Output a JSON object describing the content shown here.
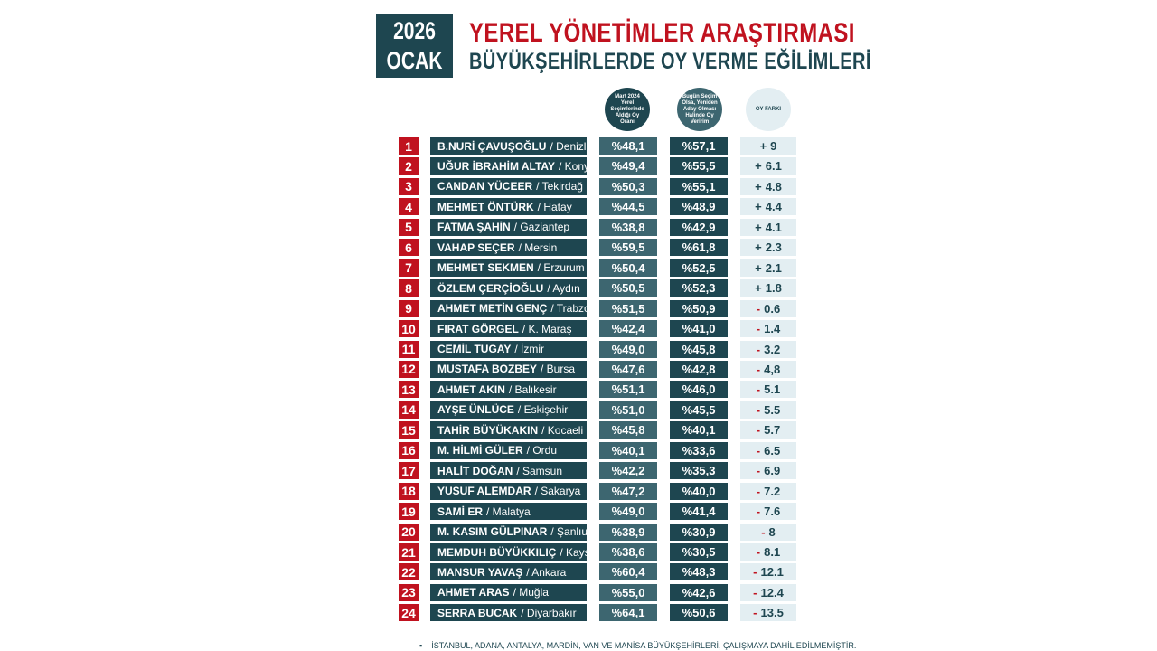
{
  "header": {
    "year": "2026",
    "month": "OCAK",
    "title": "YEREL YÖNETİMLER ARAŞTIRMASI",
    "subtitle": "BÜYÜKŞEHİRLERDE OY VERME EĞİLİMLERİ"
  },
  "columns": {
    "march2024": "Mart 2024 Yerel Seçimlerinde Aldığı Oy Oranı",
    "today": "Bugün Seçim Olsa, Yeniden Aday Olması Halinde Oy Veririm",
    "diff": "OY FARKI"
  },
  "colors": {
    "red": "#c0121f",
    "dark_teal": "#1e4650",
    "mid_teal": "#3d6670",
    "light": "#e3eef2"
  },
  "rows": [
    {
      "rank": "1",
      "name": "B.NURİ ÇAVUŞOĞLU",
      "city": "/ Denizli",
      "v2024": "%48,1",
      "vnow": "%57,1",
      "sign": "+",
      "diff": "9"
    },
    {
      "rank": "2",
      "name": "UĞUR İBRAHİM ALTAY",
      "city": "/ Konya",
      "v2024": "%49,4",
      "vnow": "%55,5",
      "sign": "+",
      "diff": "6.1"
    },
    {
      "rank": "3",
      "name": "CANDAN YÜCEER",
      "city": "/ Tekirdağ",
      "v2024": "%50,3",
      "vnow": "%55,1",
      "sign": "+",
      "diff": "4.8"
    },
    {
      "rank": "4",
      "name": "MEHMET ÖNTÜRK",
      "city": "/ Hatay",
      "v2024": "%44,5",
      "vnow": "%48,9",
      "sign": "+",
      "diff": "4.4"
    },
    {
      "rank": "5",
      "name": "FATMA ŞAHİN",
      "city": "/ Gaziantep",
      "v2024": "%38,8",
      "vnow": "%42,9",
      "sign": "+",
      "diff": "4.1"
    },
    {
      "rank": "6",
      "name": "VAHAP SEÇER",
      "city": "/ Mersin",
      "v2024": "%59,5",
      "vnow": "%61,8",
      "sign": "+",
      "diff": "2.3"
    },
    {
      "rank": "7",
      "name": "MEHMET SEKMEN",
      "city": "/ Erzurum",
      "v2024": "%50,4",
      "vnow": "%52,5",
      "sign": "+",
      "diff": "2.1"
    },
    {
      "rank": "8",
      "name": "ÖZLEM ÇERÇİOĞLU",
      "city": "/ Aydın",
      "v2024": "%50,5",
      "vnow": "%52,3",
      "sign": "+",
      "diff": "1.8"
    },
    {
      "rank": "9",
      "name": "AHMET METİN GENÇ",
      "city": "/ Trabzon",
      "v2024": "%51,5",
      "vnow": "%50,9",
      "sign": "-",
      "diff": "0.6"
    },
    {
      "rank": "10",
      "name": "FIRAT GÖRGEL",
      "city": "/ K. Maraş",
      "v2024": "%42,4",
      "vnow": "%41,0",
      "sign": "-",
      "diff": "1.4"
    },
    {
      "rank": "11",
      "name": "CEMİL TUGAY",
      "city": "/ İzmir",
      "v2024": "%49,0",
      "vnow": "%45,8",
      "sign": "-",
      "diff": "3.2"
    },
    {
      "rank": "12",
      "name": "MUSTAFA BOZBEY",
      "city": "/ Bursa",
      "v2024": "%47,6",
      "vnow": "%42,8",
      "sign": "-",
      "diff": "4,8"
    },
    {
      "rank": "13",
      "name": "AHMET AKIN",
      "city": "/ Balıkesir",
      "v2024": "%51,1",
      "vnow": "%46,0",
      "sign": "-",
      "diff": "5.1"
    },
    {
      "rank": "14",
      "name": "AYŞE ÜNLÜCE",
      "city": "/ Eskişehir",
      "v2024": "%51,0",
      "vnow": "%45,5",
      "sign": "-",
      "diff": "5.5"
    },
    {
      "rank": "15",
      "name": "TAHİR BÜYÜKAKIN",
      "city": "/ Kocaeli",
      "v2024": "%45,8",
      "vnow": "%40,1",
      "sign": "-",
      "diff": "5.7"
    },
    {
      "rank": "16",
      "name": "M. HİLMİ GÜLER",
      "city": "/ Ordu",
      "v2024": "%40,1",
      "vnow": "%33,6",
      "sign": "-",
      "diff": "6.5"
    },
    {
      "rank": "17",
      "name": "HALİT DOĞAN",
      "city": "/ Samsun",
      "v2024": "%42,2",
      "vnow": "%35,3",
      "sign": "-",
      "diff": "6.9"
    },
    {
      "rank": "18",
      "name": "YUSUF ALEMDAR",
      "city": "/ Sakarya",
      "v2024": "%47,2",
      "vnow": "%40,0",
      "sign": "-",
      "diff": "7.2"
    },
    {
      "rank": "19",
      "name": "SAMİ ER",
      "city": "/ Malatya",
      "v2024": "%49,0",
      "vnow": "%41,4",
      "sign": "-",
      "diff": "7.6"
    },
    {
      "rank": "20",
      "name": "M. KASIM GÜLPINAR",
      "city": "/ Şanlıurfa",
      "v2024": "%38,9",
      "vnow": "%30,9",
      "sign": "-",
      "diff": "8"
    },
    {
      "rank": "21",
      "name": "MEMDUH BÜYÜKKILIÇ",
      "city": "/ Kayseri",
      "v2024": "%38,6",
      "vnow": "%30,5",
      "sign": "-",
      "diff": "8.1"
    },
    {
      "rank": "22",
      "name": "MANSUR YAVAŞ",
      "city": "/ Ankara",
      "v2024": "%60,4",
      "vnow": "%48,3",
      "sign": "-",
      "diff": "12.1"
    },
    {
      "rank": "23",
      "name": "AHMET ARAS",
      "city": "/ Muğla",
      "v2024": "%55,0",
      "vnow": "%42,6",
      "sign": "-",
      "diff": "12.4"
    },
    {
      "rank": "24",
      "name": "SERRA BUCAK",
      "city": "/ Diyarbakır",
      "v2024": "%64,1",
      "vnow": "%50,6",
      "sign": "-",
      "diff": "13.5"
    }
  ],
  "footnote": {
    "bullet": "▪",
    "text": "İSTANBUL, ADANA, ANTALYA, MARDİN, VAN VE MANİSA BÜYÜKŞEHİRLERİ, ÇALIŞMAYA DAHİL EDİLMEMİŞTİR."
  }
}
